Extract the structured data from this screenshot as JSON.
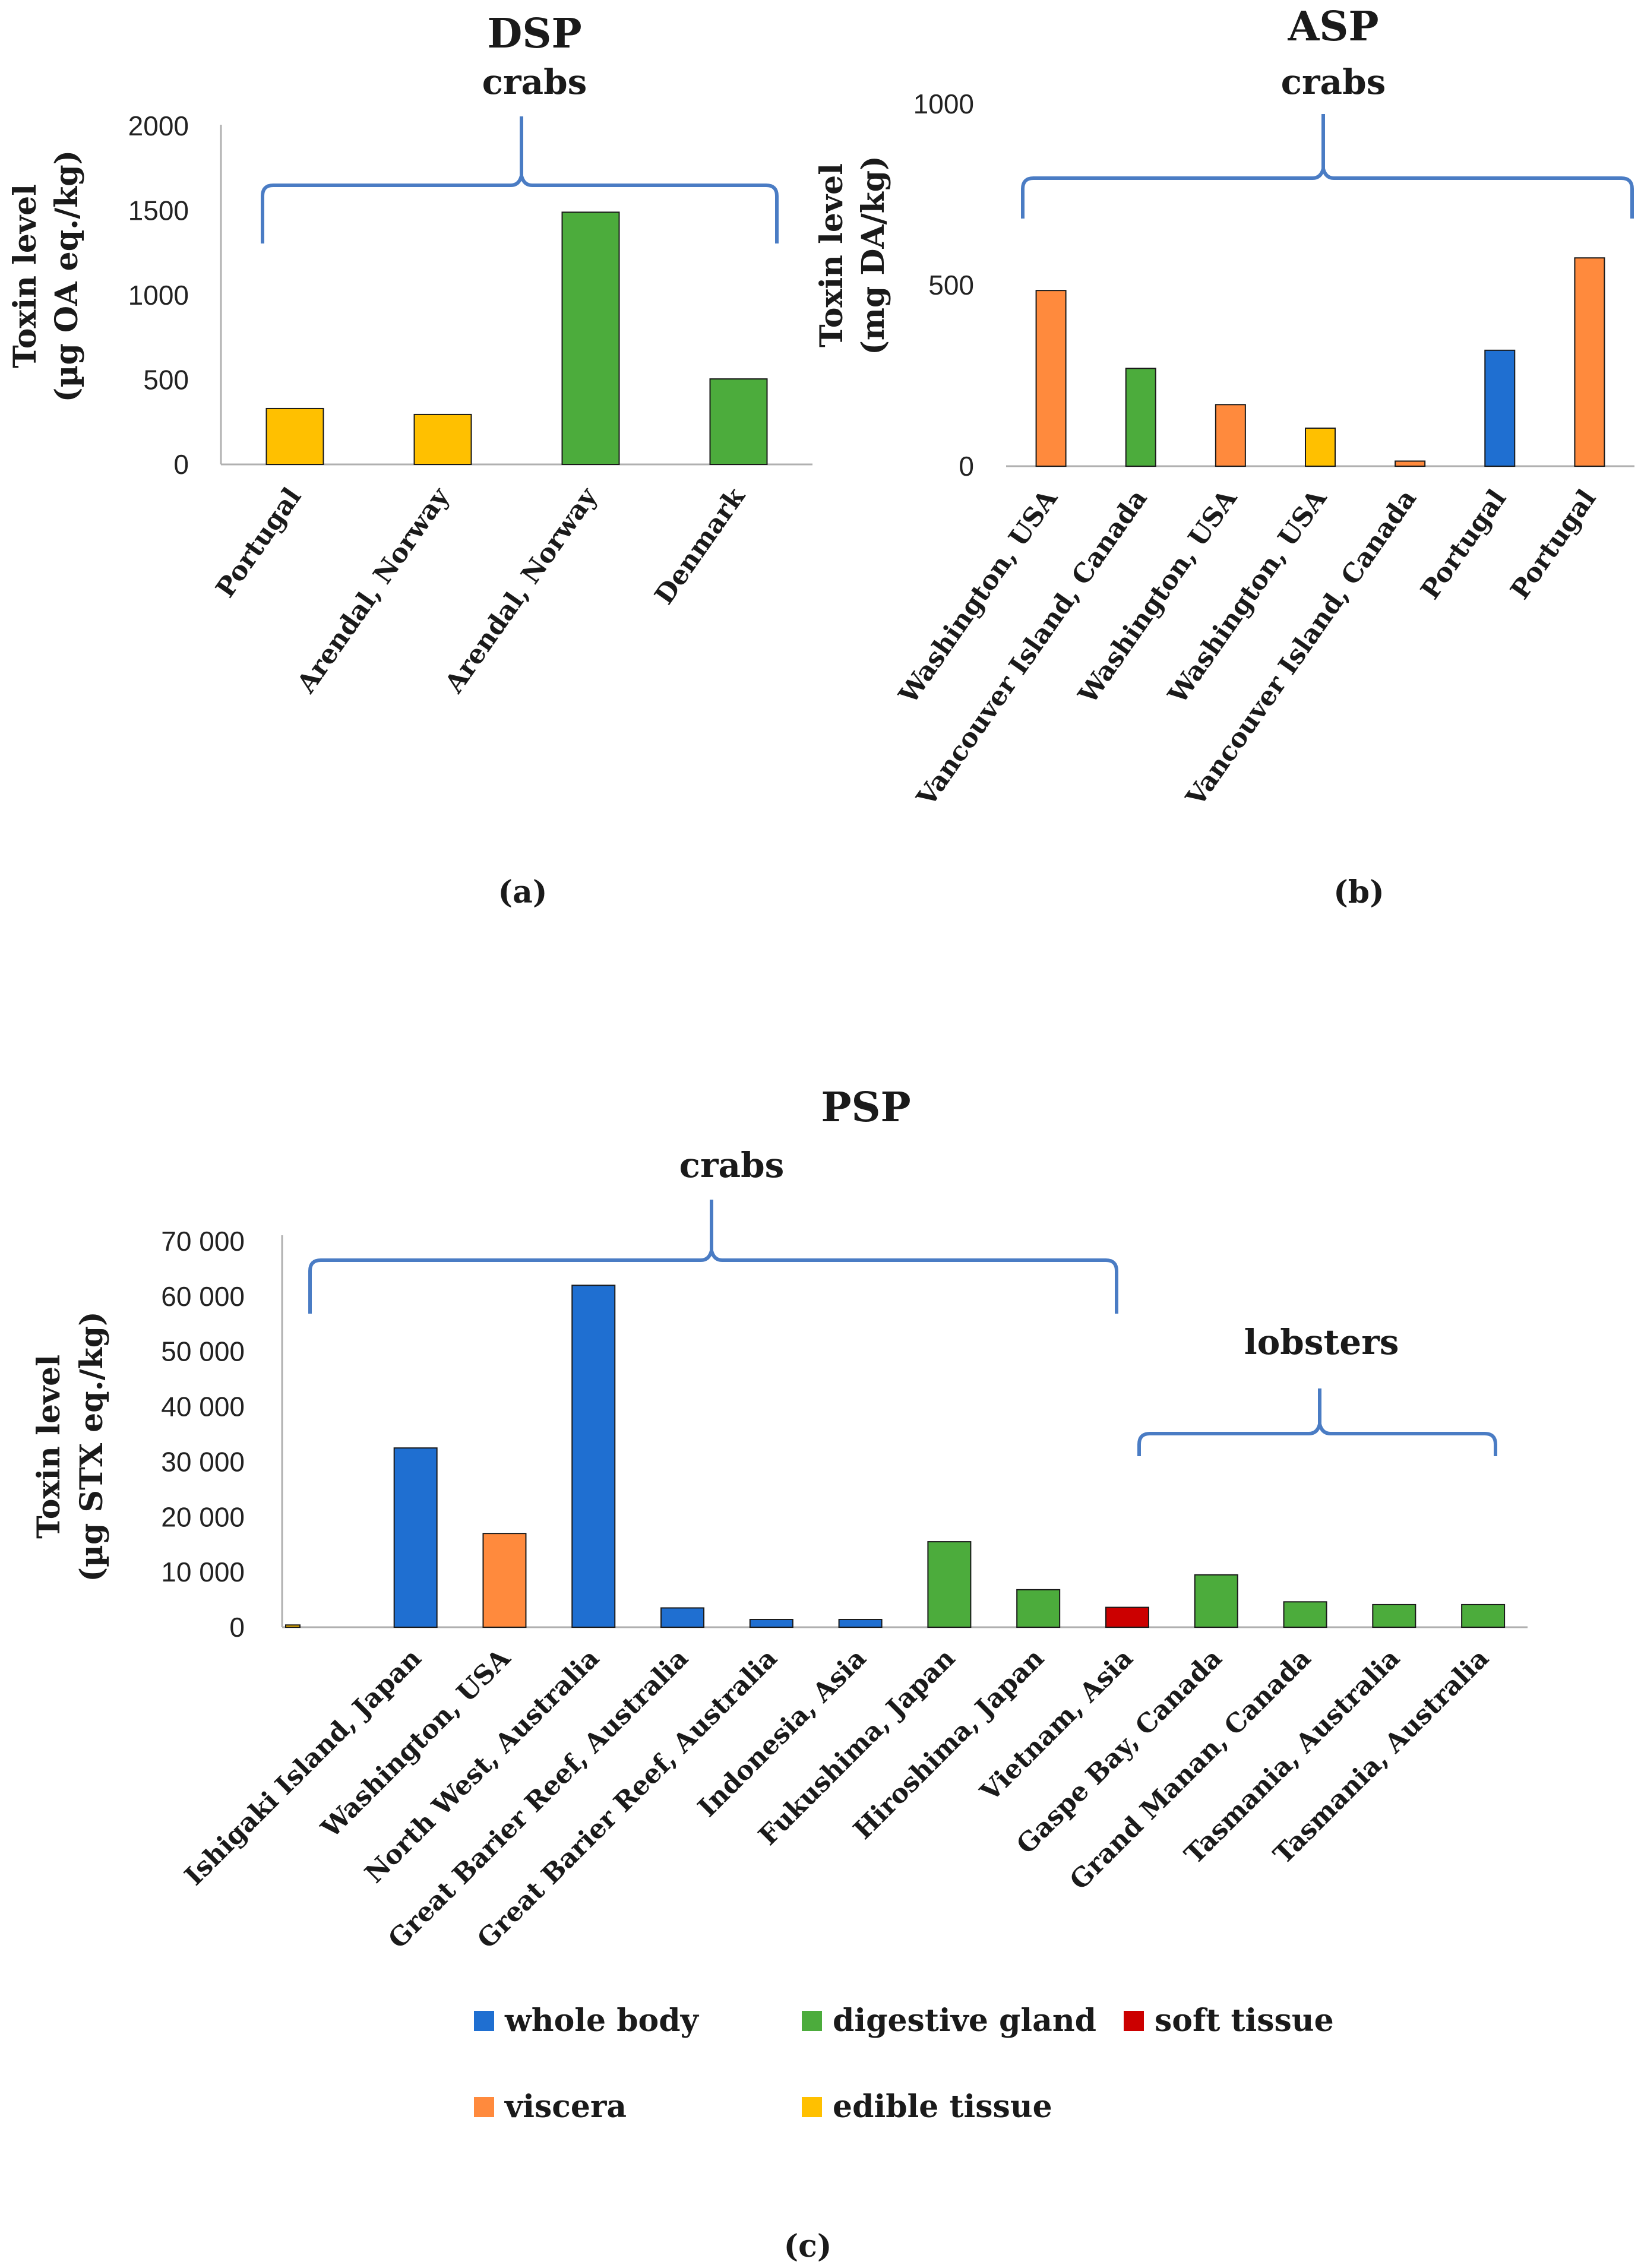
{
  "colors": {
    "whole_body": "#1f6fd1",
    "viscera": "#ff8a3d",
    "edible_tissue": "#ffc000",
    "digestive_gland": "#4cac3c",
    "soft_tissue": "#cc0000",
    "brace": "#4a7cc4"
  },
  "legend": [
    {
      "key": "whole_body",
      "label": "whole body"
    },
    {
      "key": "digestive_gland",
      "label": "digestive gland"
    },
    {
      "key": "soft_tissue",
      "label": "soft tissue"
    },
    {
      "key": "viscera",
      "label": "viscera"
    },
    {
      "key": "edible_tissue",
      "label": "edible tissue"
    }
  ],
  "chart_data": [
    {
      "id": "a",
      "type": "bar",
      "title": "DSP",
      "group_label": "crabs",
      "ylabel_line1": "Toxin level",
      "ylabel_line2": "(µg OA eq./kg)",
      "caption": "(a)",
      "ylim": [
        0,
        2000
      ],
      "yticks": [
        {
          "value": 0,
          "label": "0"
        },
        {
          "value": 500,
          "label": "500"
        },
        {
          "value": 1000,
          "label": "1000"
        },
        {
          "value": 1500,
          "label": "1500"
        },
        {
          "value": 2000,
          "label": "2000"
        }
      ],
      "categories": [
        "Portugal",
        "Arendal, Norway",
        "Arendal, Norway",
        "Denmark"
      ],
      "values": [
        330,
        295,
        1490,
        505
      ],
      "tissues": [
        "edible_tissue",
        "edible_tissue",
        "digestive_gland",
        "digestive_gland"
      ]
    },
    {
      "id": "b",
      "type": "bar",
      "title": "ASP",
      "group_label": "crabs",
      "ylabel_line1": "Toxin level",
      "ylabel_line2": "(mg DA/kg)",
      "caption": "(b)",
      "ylim": [
        0,
        1000
      ],
      "yticks": [
        {
          "value": 0,
          "label": "0"
        },
        {
          "value": 500,
          "label": "500"
        },
        {
          "value": 1000,
          "label": "1000"
        }
      ],
      "categories": [
        "Washington, USA",
        "Vancouver Island, Canada",
        "Washington, USA",
        "Washington, USA",
        "Vancouver Island, Canada",
        "Portugal",
        "Portugal"
      ],
      "values": [
        485,
        270,
        170,
        105,
        14,
        320,
        575
      ],
      "tissues": [
        "viscera",
        "digestive_gland",
        "viscera",
        "edible_tissue",
        "viscera",
        "whole_body",
        "viscera"
      ]
    },
    {
      "id": "c",
      "type": "bar",
      "title": "PSP",
      "group_labels": [
        "crabs",
        "lobsters"
      ],
      "ylabel_line1": "Toxin level",
      "ylabel_line2": "(µg STX eq./kg)",
      "caption": "(c)",
      "ylim": [
        0,
        70000
      ],
      "yticks": [
        {
          "value": 0,
          "label": "0"
        },
        {
          "value": 10000,
          "label": "10 000"
        },
        {
          "value": 20000,
          "label": "20 000"
        },
        {
          "value": 30000,
          "label": "30 000"
        },
        {
          "value": 40000,
          "label": "40 000"
        },
        {
          "value": 50000,
          "label": "50 000"
        },
        {
          "value": 60000,
          "label": "60 000"
        },
        {
          "value": 70000,
          "label": "70 000"
        }
      ],
      "categories": [
        "Ishigaki Island, Japan",
        "Washington, USA",
        "North West, Australia",
        "Great Barier Reef, Australia",
        "Great Barier Reef, Australia",
        "Indonesia, Asia",
        "Fukushima, Japan",
        "Hiroshima, Japan",
        "Vietnam, Asia",
        "Gaspe Bay, Canada",
        "Grand Manan, Canada",
        "Tasmania, Australia",
        "Tasmania, Australia"
      ],
      "values": [
        32500,
        17000,
        62000,
        3500,
        1400,
        1400,
        15500,
        6800,
        3600,
        9500,
        4600,
        4100,
        4100
      ],
      "tissues": [
        "whole_body",
        "viscera",
        "whole_body",
        "whole_body",
        "whole_body",
        "whole_body",
        "digestive_gland",
        "digestive_gland",
        "soft_tissue",
        "digestive_gland",
        "digestive_gland",
        "digestive_gland",
        "digestive_gland"
      ],
      "extra_bars": [
        {
          "value": 400,
          "tissue": "edible_tissue",
          "label": ""
        }
      ]
    }
  ]
}
